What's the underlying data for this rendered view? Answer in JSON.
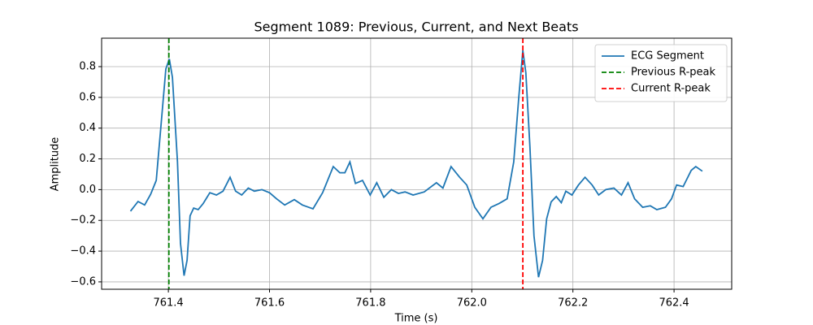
{
  "chart_data": {
    "type": "line",
    "title": "Segment 1089: Previous, Current, and Next Beats",
    "xlabel": "Time (s)",
    "ylabel": "Amplitude",
    "xlim": [
      761.268,
      762.514
    ],
    "ylim": [
      -0.648,
      0.985
    ],
    "xticks": [
      761.4,
      761.6,
      761.8,
      {
        "value": 762.0,
        "label": "762.0"
      },
      762.2,
      762.4
    ],
    "yticks": [
      {
        "value": -0.6,
        "label": "−0.6"
      },
      {
        "value": -0.4,
        "label": "−0.4"
      },
      {
        "value": -0.2,
        "label": "−0.2"
      },
      {
        "value": 0,
        "label": "0.0"
      },
      0.2,
      0.4,
      0.6,
      0.8
    ],
    "grid": true,
    "legend": "upper right",
    "series": [
      {
        "name": "ECG Segment",
        "color": "#1f77b4",
        "x": [
          761.325,
          761.34,
          761.353,
          761.365,
          761.376,
          761.386,
          761.395,
          761.402,
          761.408,
          761.418,
          761.424,
          761.431,
          761.437,
          761.443,
          761.45,
          761.459,
          761.469,
          761.482,
          761.495,
          761.508,
          761.522,
          761.533,
          761.545,
          761.558,
          761.57,
          761.585,
          761.6,
          761.614,
          761.63,
          761.649,
          761.665,
          761.686,
          761.705,
          761.726,
          761.739,
          761.749,
          761.759,
          761.77,
          761.784,
          761.799,
          761.812,
          761.826,
          761.841,
          761.855,
          761.868,
          761.884,
          761.906,
          761.93,
          761.943,
          761.959,
          761.976,
          761.99,
          762.006,
          762.022,
          762.038,
          762.054,
          762.07,
          762.083,
          762.093,
          762.101,
          762.107,
          762.115,
          762.123,
          762.132,
          762.14,
          762.148,
          762.157,
          762.167,
          762.177,
          762.186,
          762.198,
          762.211,
          762.224,
          762.238,
          762.251,
          762.265,
          762.281,
          762.296,
          762.309,
          762.322,
          762.338,
          762.353,
          762.366,
          762.383,
          762.395,
          762.405,
          762.418,
          762.434,
          762.443,
          762.456
        ],
        "values": [
          -0.14,
          -0.077,
          -0.1,
          -0.03,
          0.06,
          0.44,
          0.785,
          0.85,
          0.73,
          0.18,
          -0.35,
          -0.56,
          -0.46,
          -0.17,
          -0.12,
          -0.13,
          -0.09,
          -0.02,
          -0.035,
          -0.01,
          0.08,
          -0.01,
          -0.035,
          0.01,
          -0.01,
          0.0,
          -0.02,
          -0.06,
          -0.1,
          -0.065,
          -0.1,
          -0.125,
          -0.02,
          0.15,
          0.11,
          0.11,
          0.18,
          0.04,
          0.06,
          -0.035,
          0.045,
          -0.05,
          0.0,
          -0.025,
          -0.015,
          -0.035,
          -0.015,
          0.045,
          0.01,
          0.15,
          0.08,
          0.03,
          -0.115,
          -0.19,
          -0.115,
          -0.09,
          -0.06,
          0.18,
          0.6,
          0.905,
          0.76,
          0.28,
          -0.3,
          -0.57,
          -0.46,
          -0.19,
          -0.08,
          -0.045,
          -0.085,
          -0.01,
          -0.035,
          0.03,
          0.08,
          0.03,
          -0.035,
          0.0,
          0.01,
          -0.035,
          0.045,
          -0.06,
          -0.115,
          -0.105,
          -0.13,
          -0.115,
          -0.06,
          0.03,
          0.02,
          0.125,
          0.15,
          0.12
        ]
      }
    ],
    "reference_lines": [
      {
        "name": "Previous R-peak",
        "color": "#008000",
        "x": 761.401
      },
      {
        "name": "Current R-peak",
        "color": "#ff0000",
        "x": 762.101
      }
    ]
  }
}
